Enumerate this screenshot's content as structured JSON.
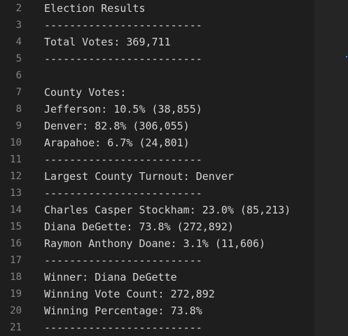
{
  "editor": {
    "lines": [
      {
        "number": "2",
        "text": "Election Results"
      },
      {
        "number": "3",
        "text": "-------------------------"
      },
      {
        "number": "4",
        "text": "Total Votes: 369,711"
      },
      {
        "number": "5",
        "text": "-------------------------"
      },
      {
        "number": "6",
        "text": ""
      },
      {
        "number": "7",
        "text": "County Votes:"
      },
      {
        "number": "8",
        "text": "Jefferson: 10.5% (38,855)"
      },
      {
        "number": "9",
        "text": "Denver: 82.8% (306,055)"
      },
      {
        "number": "10",
        "text": "Arapahoe: 6.7% (24,801)"
      },
      {
        "number": "11",
        "text": "-------------------------"
      },
      {
        "number": "12",
        "text": "Largest County Turnout: Denver"
      },
      {
        "number": "13",
        "text": "-------------------------"
      },
      {
        "number": "14",
        "text": "Charles Casper Stockham: 23.0% (85,213)"
      },
      {
        "number": "15",
        "text": "Diana DeGette: 73.8% (272,892)"
      },
      {
        "number": "16",
        "text": "Raymon Anthony Doane: 3.1% (11,606)"
      },
      {
        "number": "17",
        "text": "-------------------------"
      },
      {
        "number": "18",
        "text": "Winner: Diana DeGette"
      },
      {
        "number": "19",
        "text": "Winning Vote Count: 272,892"
      },
      {
        "number": "20",
        "text": "Winning Percentage: 73.8%"
      },
      {
        "number": "21",
        "text": "-------------------------"
      }
    ]
  },
  "colors": {
    "background": "#1e1e1e",
    "text": "#d4d4d4",
    "line_number": "#858585",
    "side_panel": "#252526"
  }
}
